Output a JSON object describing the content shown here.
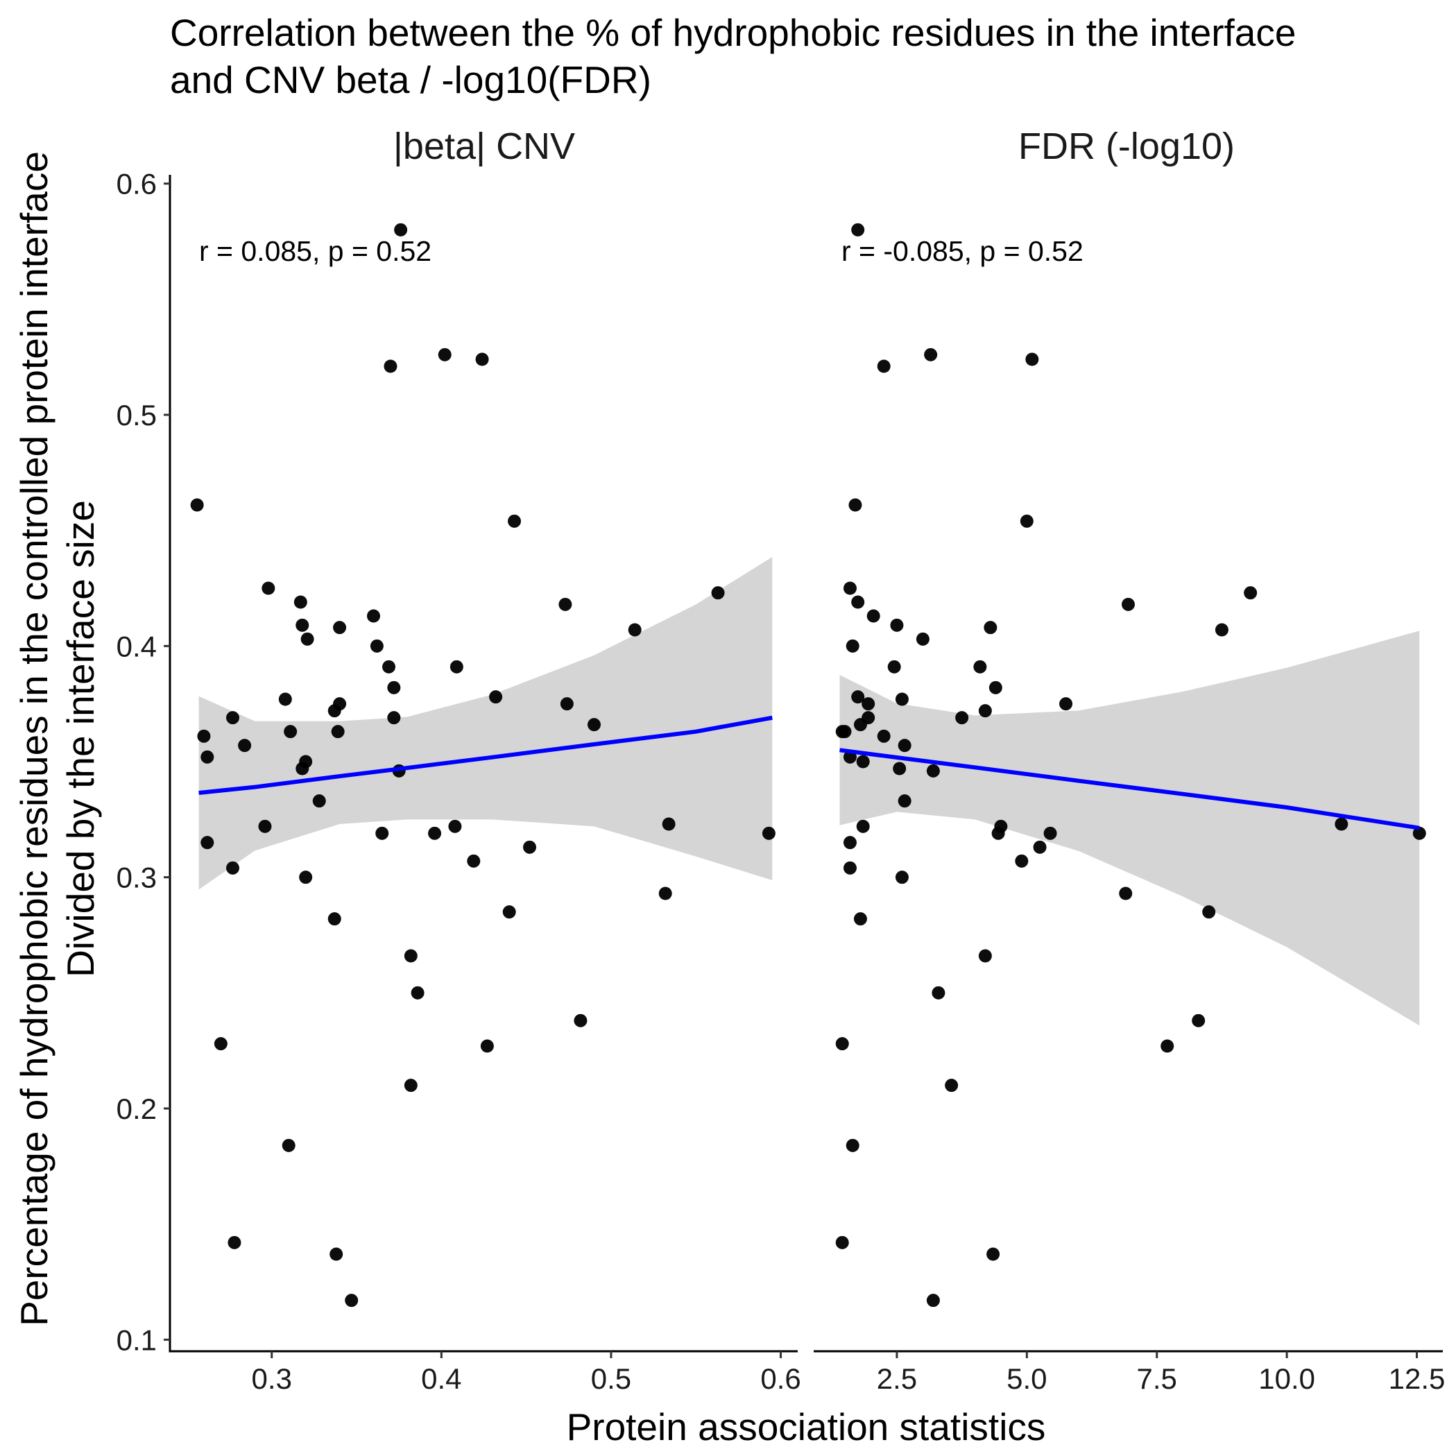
{
  "chart_data": {
    "type": "scatter",
    "title_lines": [
      "Correlation between the % of hydrophobic residues in the interface",
      "and CNV beta / -log10(FDR)"
    ],
    "xlabel": "Protein association statistics",
    "ylabel_lines": [
      "Percentage of hydrophobic residues in the controlled protein interface",
      "Divided by the interface size"
    ],
    "ylim": [
      0.095,
      0.605
    ],
    "y_ticks": [
      0.1,
      0.2,
      0.3,
      0.4,
      0.5,
      0.6
    ],
    "y_tick_labels": [
      "0.1",
      "0.2",
      "0.3",
      "0.4",
      "0.5",
      "0.6"
    ],
    "grid": false,
    "colors": {
      "points": "#000000",
      "fit_line": "#0000ff",
      "ribbon": "#d3d3d3"
    },
    "panels": [
      {
        "strip": "|beta| CNV",
        "annotation": "r = 0.085, p = 0.52",
        "xlim": [
          0.24,
          0.61
        ],
        "x_ticks": [
          0.3,
          0.4,
          0.5,
          0.6
        ],
        "x_tick_labels": [
          "0.3",
          "0.4",
          "0.5",
          "0.6"
        ],
        "fit": {
          "x": [
            0.257,
            0.29,
            0.34,
            0.38,
            0.43,
            0.49,
            0.55,
            0.595
          ],
          "y": [
            0.3365,
            0.339,
            0.3437,
            0.3473,
            0.3519,
            0.3575,
            0.363,
            0.369
          ],
          "lower": [
            0.2947,
            0.3115,
            0.323,
            0.325,
            0.325,
            0.322,
            0.309,
            0.2987
          ],
          "upper": [
            0.3783,
            0.3675,
            0.3675,
            0.3694,
            0.379,
            0.396,
            0.418,
            0.4385
          ]
        },
        "points": [
          [
            0.376,
            0.58
          ],
          [
            0.402,
            0.526
          ],
          [
            0.424,
            0.524
          ],
          [
            0.37,
            0.521
          ],
          [
            0.256,
            0.461
          ],
          [
            0.443,
            0.454
          ],
          [
            0.298,
            0.425
          ],
          [
            0.563,
            0.423
          ],
          [
            0.317,
            0.419
          ],
          [
            0.473,
            0.418
          ],
          [
            0.36,
            0.413
          ],
          [
            0.318,
            0.409
          ],
          [
            0.34,
            0.408
          ],
          [
            0.514,
            0.407
          ],
          [
            0.321,
            0.403
          ],
          [
            0.362,
            0.4
          ],
          [
            0.369,
            0.391
          ],
          [
            0.409,
            0.391
          ],
          [
            0.372,
            0.382
          ],
          [
            0.432,
            0.378
          ],
          [
            0.308,
            0.377
          ],
          [
            0.34,
            0.375
          ],
          [
            0.474,
            0.375
          ],
          [
            0.337,
            0.372
          ],
          [
            0.372,
            0.369
          ],
          [
            0.277,
            0.369
          ],
          [
            0.49,
            0.366
          ],
          [
            0.311,
            0.363
          ],
          [
            0.339,
            0.363
          ],
          [
            0.26,
            0.361
          ],
          [
            0.284,
            0.357
          ],
          [
            0.262,
            0.352
          ],
          [
            0.32,
            0.35
          ],
          [
            0.318,
            0.347
          ],
          [
            0.375,
            0.346
          ],
          [
            0.328,
            0.333
          ],
          [
            0.296,
            0.322
          ],
          [
            0.408,
            0.322
          ],
          [
            0.534,
            0.323
          ],
          [
            0.593,
            0.319
          ],
          [
            0.365,
            0.319
          ],
          [
            0.396,
            0.319
          ],
          [
            0.262,
            0.315
          ],
          [
            0.452,
            0.313
          ],
          [
            0.419,
            0.307
          ],
          [
            0.277,
            0.304
          ],
          [
            0.32,
            0.3
          ],
          [
            0.532,
            0.293
          ],
          [
            0.44,
            0.285
          ],
          [
            0.337,
            0.282
          ],
          [
            0.382,
            0.266
          ],
          [
            0.386,
            0.25
          ],
          [
            0.482,
            0.238
          ],
          [
            0.27,
            0.228
          ],
          [
            0.427,
            0.227
          ],
          [
            0.382,
            0.21
          ],
          [
            0.31,
            0.184
          ],
          [
            0.278,
            0.142
          ],
          [
            0.338,
            0.137
          ],
          [
            0.347,
            0.117
          ]
        ]
      },
      {
        "strip": "FDR (-log10)",
        "annotation": "r = -0.085, p = 0.52",
        "xlim": [
          0.9,
          13.0
        ],
        "x_ticks": [
          2.5,
          5.0,
          7.5,
          10.0,
          12.5
        ],
        "x_tick_labels": [
          "2.5",
          "5.0",
          "7.5",
          "10.0",
          "12.5"
        ],
        "fit": {
          "x": [
            1.4,
            2.5,
            4.0,
            6.0,
            8.0,
            10.0,
            12.55
          ],
          "y": [
            0.355,
            0.3518,
            0.3475,
            0.3417,
            0.336,
            0.3302,
            0.3213
          ],
          "lower": [
            0.3225,
            0.3283,
            0.325,
            0.3113,
            0.2917,
            0.2698,
            0.2359
          ],
          "upper": [
            0.3875,
            0.3752,
            0.37,
            0.3721,
            0.3803,
            0.3906,
            0.4066
          ]
        },
        "points": [
          [
            1.75,
            0.58
          ],
          [
            3.15,
            0.526
          ],
          [
            5.1,
            0.524
          ],
          [
            2.25,
            0.521
          ],
          [
            1.7,
            0.461
          ],
          [
            5.0,
            0.454
          ],
          [
            1.6,
            0.425
          ],
          [
            9.3,
            0.423
          ],
          [
            1.75,
            0.419
          ],
          [
            6.95,
            0.418
          ],
          [
            2.05,
            0.413
          ],
          [
            2.5,
            0.409
          ],
          [
            4.3,
            0.408
          ],
          [
            8.75,
            0.407
          ],
          [
            3.0,
            0.403
          ],
          [
            1.65,
            0.4
          ],
          [
            2.45,
            0.391
          ],
          [
            4.1,
            0.391
          ],
          [
            4.4,
            0.382
          ],
          [
            1.75,
            0.378
          ],
          [
            2.6,
            0.377
          ],
          [
            1.95,
            0.375
          ],
          [
            5.75,
            0.375
          ],
          [
            4.2,
            0.372
          ],
          [
            1.95,
            0.369
          ],
          [
            3.75,
            0.369
          ],
          [
            1.8,
            0.366
          ],
          [
            1.45,
            0.363
          ],
          [
            1.5,
            0.363
          ],
          [
            2.25,
            0.361
          ],
          [
            2.65,
            0.357
          ],
          [
            1.6,
            0.352
          ],
          [
            1.85,
            0.35
          ],
          [
            2.55,
            0.347
          ],
          [
            3.2,
            0.346
          ],
          [
            2.65,
            0.333
          ],
          [
            1.85,
            0.322
          ],
          [
            4.5,
            0.322
          ],
          [
            11.05,
            0.323
          ],
          [
            12.55,
            0.319
          ],
          [
            4.45,
            0.319
          ],
          [
            5.45,
            0.319
          ],
          [
            1.6,
            0.315
          ],
          [
            5.25,
            0.313
          ],
          [
            4.9,
            0.307
          ],
          [
            1.6,
            0.304
          ],
          [
            2.6,
            0.3
          ],
          [
            6.9,
            0.293
          ],
          [
            8.5,
            0.285
          ],
          [
            1.8,
            0.282
          ],
          [
            4.2,
            0.266
          ],
          [
            3.3,
            0.25
          ],
          [
            8.3,
            0.238
          ],
          [
            1.45,
            0.228
          ],
          [
            7.7,
            0.227
          ],
          [
            3.55,
            0.21
          ],
          [
            1.65,
            0.184
          ],
          [
            1.45,
            0.142
          ],
          [
            4.35,
            0.137
          ],
          [
            3.2,
            0.117
          ]
        ]
      }
    ]
  }
}
